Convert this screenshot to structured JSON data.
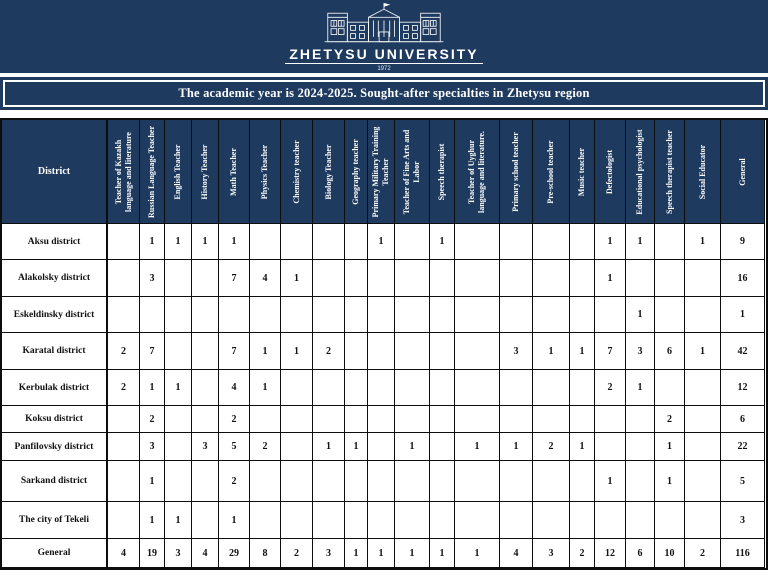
{
  "brand": {
    "logo_icon": "university-building-icon",
    "university_name": "ZHETYSU UNIVERSITY",
    "established_year": "1972"
  },
  "title_bar": {
    "text": "The academic year is 2024-2025. Sought-after specialties in Zhetysu region"
  },
  "colors": {
    "band_navy": "#1e3a5f",
    "band_border_white": "#ffffff",
    "table_border_black": "#0d0d0d",
    "header_text_white": "#ffffff",
    "body_text_black": "#111111"
  },
  "table": {
    "district_header": "District",
    "columns": [
      "Teacher of Kazakh language and literature",
      "Russian Language Teacher",
      "English Teacher",
      "History Teacher",
      "Math Teacher",
      "Physics Teacher",
      "Chemistry teacher",
      "Biology Teacher",
      "Geography teacher",
      "Primary Military Training Teacher",
      "Teacher of Fine Arts and Labor",
      "Speech therapist",
      "Teacher of Uyghur language and literature.",
      "Primary school teacher",
      "Pre-school teacher",
      "Music teacher",
      "Defectologist",
      "Educational psychologist",
      "Speech therapist teacher",
      "Social Educator",
      "General"
    ],
    "rows": [
      {
        "district": "Aksu district",
        "values": [
          "",
          "1",
          "1",
          "1",
          "1",
          "",
          "",
          "",
          "",
          "1",
          "",
          "1",
          "",
          "",
          "",
          "",
          "1",
          "1",
          "",
          "1",
          "9"
        ]
      },
      {
        "district": "Alakolsky district",
        "values": [
          "",
          "3",
          "",
          "",
          "7",
          "4",
          "1",
          "",
          "",
          "",
          "",
          "",
          "",
          "",
          "",
          "",
          "1",
          "",
          "",
          "",
          "16"
        ]
      },
      {
        "district": "Eskeldinsky district",
        "values": [
          "",
          "",
          "",
          "",
          "",
          "",
          "",
          "",
          "",
          "",
          "",
          "",
          "",
          "",
          "",
          "",
          "",
          "1",
          "",
          "",
          "1"
        ]
      },
      {
        "district": "Karatal district",
        "values": [
          "2",
          "7",
          "",
          "",
          "7",
          "1",
          "1",
          "2",
          "",
          "",
          "",
          "",
          "",
          "3",
          "1",
          "1",
          "7",
          "3",
          "6",
          "1",
          "42"
        ]
      },
      {
        "district": "Kerbulak district",
        "values": [
          "2",
          "1",
          "1",
          "",
          "4",
          "1",
          "",
          "",
          "",
          "",
          "",
          "",
          "",
          "",
          "",
          "",
          "2",
          "1",
          "",
          "",
          "12"
        ]
      },
      {
        "district": "Koksu district",
        "values": [
          "",
          "2",
          "",
          "",
          "2",
          "",
          "",
          "",
          "",
          "",
          "",
          "",
          "",
          "",
          "",
          "",
          "",
          "",
          "2",
          "",
          "6"
        ]
      },
      {
        "district": "Panfilovsky district",
        "values": [
          "",
          "3",
          "",
          "3",
          "5",
          "2",
          "",
          "1",
          "1",
          "",
          "1",
          "",
          "1",
          "1",
          "2",
          "1",
          "",
          "",
          "1",
          "",
          "22"
        ]
      },
      {
        "district": "Sarkand district",
        "values": [
          "",
          "1",
          "",
          "",
          "2",
          "",
          "",
          "",
          "",
          "",
          "",
          "",
          "",
          "",
          "",
          "",
          "1",
          "",
          "1",
          "",
          "5"
        ]
      },
      {
        "district": "The city of Tekeli",
        "values": [
          "",
          "1",
          "1",
          "",
          "1",
          "",
          "",
          "",
          "",
          "",
          "",
          "",
          "",
          "",
          "",
          "",
          "",
          "",
          "",
          "",
          "3"
        ]
      },
      {
        "district": "General",
        "values": [
          "4",
          "19",
          "3",
          "4",
          "29",
          "8",
          "2",
          "3",
          "1",
          "1",
          "1",
          "1",
          "1",
          "4",
          "3",
          "2",
          "12",
          "6",
          "10",
          "2",
          "116"
        ]
      }
    ]
  }
}
